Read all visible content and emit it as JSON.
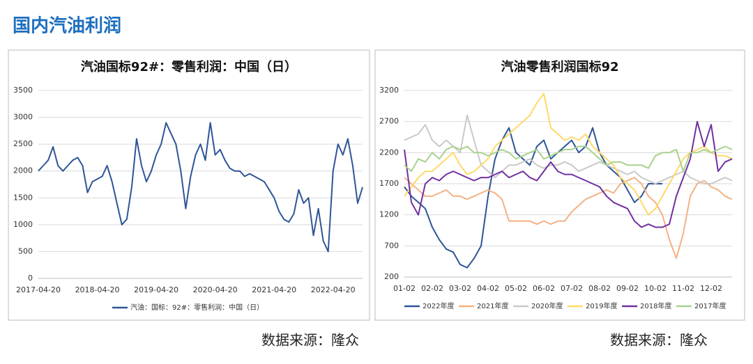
{
  "header": {
    "title": "国内汽油利润"
  },
  "chart_data": [
    {
      "type": "line",
      "title": "汽油国标92#：零售利润：中国（日）",
      "source": "数据来源：隆众",
      "categories": [
        "2017-04-20",
        null,
        null,
        null,
        null,
        null,
        null,
        null,
        null,
        null,
        null,
        null,
        "2018-04-20",
        null,
        null,
        null,
        null,
        null,
        null,
        null,
        null,
        null,
        null,
        null,
        "2019-04-20",
        null,
        null,
        null,
        null,
        null,
        null,
        null,
        null,
        null,
        null,
        null,
        "2020-04-20",
        null,
        null,
        null,
        null,
        null,
        null,
        null,
        null,
        null,
        null,
        null,
        "2021-04-20",
        null,
        null,
        null,
        null,
        null,
        null,
        null,
        null,
        null,
        null,
        null,
        "2022-04-20",
        null,
        null,
        null,
        null,
        null,
        null
      ],
      "series": [
        {
          "name": "汽油：国标：92#：零售利润：中国（日）",
          "color": "#2e5597",
          "values": [
            2000,
            2100,
            2200,
            2450,
            2100,
            2000,
            2100,
            2200,
            2250,
            2100,
            1600,
            1800,
            1850,
            1900,
            2100,
            1800,
            1400,
            1000,
            1100,
            1700,
            2600,
            2100,
            1800,
            2000,
            2300,
            2500,
            2900,
            2700,
            2500,
            2000,
            1300,
            1900,
            2300,
            2500,
            2200,
            2900,
            2300,
            2400,
            2200,
            2050,
            2000,
            2000,
            1900,
            1950,
            1900,
            1850,
            1800,
            1650,
            1500,
            1250,
            1100,
            1050,
            1200,
            1650,
            1400,
            1500,
            800,
            1300,
            700,
            500,
            2000,
            2500,
            2300,
            2600,
            2100,
            1400,
            1700
          ]
        }
      ],
      "ylim": [
        0,
        3500
      ],
      "yticks": [
        0,
        500,
        1000,
        1500,
        2000,
        2500,
        3000,
        3500
      ],
      "grid": true,
      "legend": "bottom"
    },
    {
      "type": "line",
      "title": "汽油零售利润国标92",
      "source": "数据来源：隆众",
      "categories": [
        "01-02",
        null,
        null,
        null,
        "02-02",
        null,
        null,
        null,
        "03-02",
        null,
        null,
        null,
        "04-02",
        null,
        null,
        null,
        "05-02",
        null,
        null,
        null,
        "06-02",
        null,
        null,
        null,
        "07-02",
        null,
        null,
        null,
        "08-02",
        null,
        null,
        null,
        "09-02",
        null,
        null,
        null,
        "10-02",
        null,
        null,
        null,
        "11-02",
        null,
        null,
        null,
        "12-02",
        null,
        null,
        null
      ],
      "series": [
        {
          "name": "2022年度",
          "color": "#2e5597",
          "values": [
            1650,
            1500,
            1400,
            1300,
            1000,
            800,
            650,
            600,
            400,
            350,
            500,
            700,
            1500,
            2100,
            2400,
            2600,
            2200,
            2100,
            2000,
            2300,
            2400,
            2100,
            2200,
            2300,
            2400,
            2200,
            2300,
            2600,
            2200,
            2000,
            1900,
            1800,
            1600,
            1400,
            1500,
            1700,
            1700,
            1700,
            null,
            null,
            null,
            null,
            null,
            null,
            null,
            null,
            null,
            null
          ]
        },
        {
          "name": "2021年度",
          "color": "#f4b183",
          "values": [
            1800,
            1700,
            1600,
            1500,
            1500,
            1550,
            1600,
            1500,
            1500,
            1450,
            1500,
            1550,
            1600,
            1550,
            1450,
            1100,
            1100,
            1100,
            1100,
            1050,
            1100,
            1050,
            1100,
            1100,
            1250,
            1350,
            1450,
            1500,
            1550,
            1600,
            1550,
            1700,
            1750,
            1800,
            1700,
            1500,
            1400,
            1200,
            800,
            500,
            900,
            1500,
            1700,
            1750,
            1650,
            1600,
            1500,
            1450
          ]
        },
        {
          "name": "2020年度",
          "color": "#c9c9c9",
          "values": [
            2400,
            2450,
            2500,
            2650,
            2400,
            2300,
            2400,
            2300,
            2200,
            2800,
            2400,
            2000,
            1900,
            1800,
            1900,
            2000,
            2000,
            2050,
            2100,
            2000,
            1950,
            2000,
            2000,
            2050,
            2000,
            1900,
            1950,
            2000,
            2050,
            2000,
            1950,
            1900,
            1850,
            1900,
            1800,
            1750,
            1700,
            1750,
            1800,
            1850,
            1900,
            1800,
            1750,
            1700,
            1700,
            1750,
            1800,
            1750
          ]
        },
        {
          "name": "2019年度",
          "color": "#ffd966",
          "values": [
            1500,
            1650,
            1800,
            1900,
            1900,
            2000,
            2100,
            2200,
            2000,
            1850,
            1900,
            2000,
            2100,
            2300,
            2400,
            2500,
            2600,
            2700,
            2800,
            3000,
            3150,
            2600,
            2500,
            2400,
            2450,
            2400,
            2500,
            2300,
            2200,
            2100,
            2000,
            1800,
            1700,
            1600,
            1400,
            1200,
            1300,
            1500,
            1700,
            1900,
            2100,
            2200,
            2250,
            2300,
            2200,
            2150,
            2150,
            2100
          ]
        },
        {
          "name": "2018年度",
          "color": "#7030a0",
          "values": [
            2250,
            1400,
            1200,
            1700,
            1800,
            1750,
            1850,
            1900,
            1850,
            1800,
            1750,
            1800,
            1800,
            1850,
            1900,
            1800,
            1850,
            1900,
            1800,
            1750,
            1900,
            2050,
            1900,
            1850,
            1850,
            1800,
            1750,
            1700,
            1650,
            1500,
            1400,
            1350,
            1300,
            1100,
            1000,
            1050,
            1000,
            1000,
            1050,
            1500,
            1800,
            2100,
            2700,
            2300,
            2650,
            1900,
            2050,
            2100
          ]
        },
        {
          "name": "2017年度",
          "color": "#a9d18e",
          "values": [
            2000,
            1900,
            2100,
            2050,
            2200,
            2100,
            2250,
            2300,
            2250,
            2300,
            2200,
            2200,
            2150,
            2200,
            2250,
            2200,
            2100,
            2150,
            2200,
            2250,
            2100,
            2150,
            2200,
            2250,
            2250,
            2300,
            2300,
            2200,
            2100,
            2000,
            2050,
            2050,
            2000,
            2000,
            2000,
            1950,
            2150,
            2200,
            2200,
            2250,
            1900,
            2200,
            2200,
            2250,
            2200,
            2250,
            2300,
            2250
          ]
        }
      ],
      "ylim": [
        200,
        3200
      ],
      "yticks": [
        200,
        700,
        1200,
        1700,
        2200,
        2700,
        3200
      ],
      "grid": true,
      "legend": "bottom"
    }
  ]
}
